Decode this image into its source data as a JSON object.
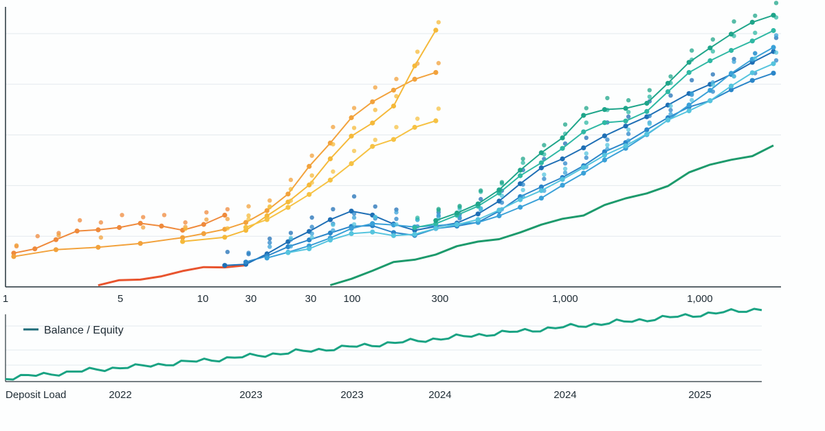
{
  "chart_data": [
    {
      "type": "scatter",
      "title": "",
      "xlabel": "",
      "ylabel": "",
      "x_scale": "log",
      "x_ticks": [
        "1",
        "5",
        "10",
        "30",
        "30",
        "100",
        "300",
        "1,000",
        "1,000"
      ],
      "grid": "horizontal",
      "legend": "none",
      "x_domain": [
        0,
        36
      ],
      "y_domain": [
        0,
        100
      ],
      "series": [
        {
          "color": "#ef8a3c",
          "style": "line+dots",
          "points": [
            [
              0,
              12
            ],
            [
              1,
              14
            ],
            [
              2,
              17
            ],
            [
              3,
              20
            ],
            [
              4,
              21
            ],
            [
              5,
              22
            ],
            [
              6,
              23
            ],
            [
              7,
              22
            ],
            [
              8,
              21
            ],
            [
              9,
              23
            ],
            [
              10,
              26
            ]
          ]
        },
        {
          "color": "#f2a23c",
          "style": "line+dots",
          "points": [
            [
              0,
              11
            ],
            [
              2,
              13
            ],
            [
              4,
              14
            ],
            [
              6,
              16
            ],
            [
              8,
              18
            ],
            [
              9,
              19
            ],
            [
              10,
              21
            ],
            [
              11,
              24
            ],
            [
              12,
              28
            ],
            [
              13,
              34
            ],
            [
              14,
              45
            ],
            [
              15,
              54
            ],
            [
              16,
              63
            ],
            [
              17,
              69
            ],
            [
              18,
              74
            ],
            [
              19,
              78
            ],
            [
              20,
              80
            ]
          ]
        },
        {
          "color": "#f5b93a",
          "style": "line+dots",
          "points": [
            [
              8,
              16
            ],
            [
              10,
              18
            ],
            [
              11,
              21
            ],
            [
              12,
              26
            ],
            [
              13,
              31
            ],
            [
              14,
              38
            ],
            [
              15,
              48
            ],
            [
              16,
              56
            ],
            [
              17,
              61
            ],
            [
              18,
              68
            ],
            [
              19,
              83
            ],
            [
              20,
              96
            ]
          ]
        },
        {
          "color": "#f6c244",
          "style": "line+dots",
          "points": [
            [
              11,
              22
            ],
            [
              12,
              25
            ],
            [
              13,
              29
            ],
            [
              14,
              34
            ],
            [
              15,
              40
            ],
            [
              16,
              46
            ],
            [
              17,
              52
            ],
            [
              18,
              55
            ],
            [
              19,
              60
            ],
            [
              20,
              62
            ]
          ]
        },
        {
          "color": "#e8542e",
          "style": "line",
          "points": [
            [
              4,
              0
            ],
            [
              5,
              1
            ],
            [
              6,
              2
            ],
            [
              7,
              4
            ],
            [
              8,
              5
            ],
            [
              9,
              6
            ],
            [
              10,
              7
            ],
            [
              11,
              8
            ]
          ]
        },
        {
          "color": "#1f6fb5",
          "style": "line+dots",
          "points": [
            [
              10,
              7
            ],
            [
              11,
              8
            ],
            [
              12,
              12
            ],
            [
              13,
              16
            ],
            [
              14,
              20
            ],
            [
              15,
              25
            ],
            [
              16,
              28
            ],
            [
              17,
              26
            ],
            [
              18,
              23
            ],
            [
              19,
              21
            ],
            [
              20,
              22
            ],
            [
              21,
              23
            ],
            [
              22,
              27
            ],
            [
              23,
              32
            ],
            [
              24,
              38
            ],
            [
              25,
              44
            ],
            [
              26,
              48
            ],
            [
              27,
              52
            ],
            [
              28,
              56
            ],
            [
              29,
              60
            ],
            [
              30,
              64
            ],
            [
              31,
              68
            ],
            [
              32,
              72
            ],
            [
              33,
              76
            ],
            [
              34,
              80
            ],
            [
              35,
              84
            ],
            [
              36,
              88
            ]
          ]
        },
        {
          "color": "#2b86c9",
          "style": "line+dots",
          "points": [
            [
              11,
              9
            ],
            [
              12,
              11
            ],
            [
              13,
              14
            ],
            [
              14,
              17
            ],
            [
              15,
              20
            ],
            [
              16,
              22
            ],
            [
              17,
              22
            ],
            [
              18,
              20
            ],
            [
              19,
              19
            ],
            [
              20,
              21
            ],
            [
              21,
              22
            ],
            [
              22,
              24
            ],
            [
              23,
              28
            ],
            [
              24,
              33
            ],
            [
              25,
              37
            ],
            [
              26,
              41
            ],
            [
              27,
              45
            ],
            [
              28,
              50
            ],
            [
              29,
              54
            ],
            [
              30,
              59
            ],
            [
              31,
              63
            ],
            [
              32,
              67
            ],
            [
              33,
              70
            ],
            [
              34,
              74
            ],
            [
              35,
              77
            ],
            [
              36,
              80
            ]
          ]
        },
        {
          "color": "#3aa1d8",
          "style": "line+dots",
          "points": [
            [
              12,
              10
            ],
            [
              13,
              12
            ],
            [
              14,
              15
            ],
            [
              15,
              18
            ],
            [
              16,
              21
            ],
            [
              17,
              23
            ],
            [
              18,
              23
            ],
            [
              19,
              22
            ],
            [
              20,
              22
            ],
            [
              21,
              23
            ],
            [
              22,
              24
            ],
            [
              23,
              26
            ],
            [
              24,
              29
            ],
            [
              25,
              33
            ],
            [
              26,
              38
            ],
            [
              27,
              42
            ],
            [
              28,
              47
            ],
            [
              29,
              52
            ],
            [
              30,
              57
            ],
            [
              31,
              62
            ],
            [
              32,
              68
            ],
            [
              33,
              74
            ],
            [
              34,
              80
            ],
            [
              35,
              85
            ],
            [
              36,
              90
            ]
          ]
        },
        {
          "color": "#55c4de",
          "style": "line+dots",
          "points": [
            [
              13,
              12
            ],
            [
              14,
              14
            ],
            [
              15,
              17
            ],
            [
              16,
              19
            ],
            [
              17,
              20
            ],
            [
              18,
              19
            ],
            [
              19,
              19
            ],
            [
              20,
              21
            ],
            [
              21,
              23
            ],
            [
              22,
              25
            ],
            [
              23,
              28
            ],
            [
              24,
              32
            ],
            [
              25,
              36
            ],
            [
              26,
              40
            ],
            [
              27,
              44
            ],
            [
              28,
              49
            ],
            [
              29,
              53
            ],
            [
              30,
              57
            ],
            [
              31,
              62
            ],
            [
              32,
              66
            ],
            [
              33,
              70
            ],
            [
              34,
              75
            ],
            [
              35,
              80
            ],
            [
              36,
              84
            ]
          ]
        },
        {
          "color": "#2fb8a4",
          "style": "line+dots",
          "points": [
            [
              19,
              22
            ],
            [
              20,
              23
            ],
            [
              21,
              26
            ],
            [
              22,
              30
            ],
            [
              23,
              35
            ],
            [
              24,
              41
            ],
            [
              25,
              46
            ],
            [
              26,
              52
            ],
            [
              27,
              58
            ],
            [
              28,
              61
            ],
            [
              29,
              62
            ],
            [
              30,
              66
            ],
            [
              31,
              73
            ],
            [
              32,
              80
            ],
            [
              33,
              85
            ],
            [
              34,
              89
            ],
            [
              35,
              92
            ],
            [
              36,
              96
            ]
          ]
        },
        {
          "color": "#1fa58a",
          "style": "line+dots",
          "points": [
            [
              20,
              24
            ],
            [
              21,
              27
            ],
            [
              22,
              31
            ],
            [
              23,
              36
            ],
            [
              24,
              43
            ],
            [
              25,
              50
            ],
            [
              26,
              56
            ],
            [
              27,
              64
            ],
            [
              28,
              66
            ],
            [
              29,
              67
            ],
            [
              30,
              69
            ],
            [
              31,
              76
            ],
            [
              32,
              84
            ],
            [
              33,
              90
            ],
            [
              34,
              95
            ],
            [
              35,
              99
            ],
            [
              36,
              102
            ]
          ]
        },
        {
          "color": "#1d9a6c",
          "style": "line",
          "points": [
            [
              15,
              0
            ],
            [
              16,
              3
            ],
            [
              17,
              5
            ],
            [
              18,
              8
            ],
            [
              19,
              10
            ],
            [
              20,
              12
            ],
            [
              21,
              14
            ],
            [
              22,
              16
            ],
            [
              23,
              18
            ],
            [
              24,
              20
            ],
            [
              25,
              22
            ],
            [
              26,
              25
            ],
            [
              27,
              27
            ],
            [
              28,
              30
            ],
            [
              29,
              32
            ],
            [
              30,
              35
            ],
            [
              31,
              38
            ],
            [
              32,
              42
            ],
            [
              33,
              45
            ],
            [
              34,
              48
            ],
            [
              35,
              49
            ],
            [
              36,
              52
            ]
          ]
        }
      ]
    },
    {
      "type": "line",
      "title": "",
      "xlabel": "Deposit Load",
      "ylabel": "",
      "x_ticks": [
        "2022",
        "2023",
        "2023",
        "2024",
        "2024",
        "2025"
      ],
      "grid": "horizontal",
      "legend": "top-left",
      "y_domain": [
        0,
        100
      ],
      "series": [
        {
          "name": "Balance / Equity",
          "color": "#1aa383",
          "values": [
            2,
            3,
            4,
            5,
            6,
            7,
            8,
            9,
            10,
            11,
            12,
            13,
            14,
            15,
            16,
            17,
            18,
            18,
            19,
            20,
            21,
            22,
            23,
            24,
            25,
            26,
            27,
            28,
            29,
            30,
            31,
            32,
            33,
            34,
            35,
            36,
            37,
            38,
            39,
            40,
            41,
            42,
            43,
            44,
            45,
            46,
            47,
            48,
            49,
            50,
            51,
            52,
            53,
            54,
            55,
            56,
            57,
            58,
            59,
            60,
            61,
            62,
            63,
            64,
            65,
            66,
            67,
            68,
            69,
            70,
            71,
            72,
            73,
            74,
            75,
            76,
            77,
            78,
            79,
            80,
            81,
            82,
            83,
            84,
            85,
            86,
            87,
            88,
            89,
            90,
            91,
            92,
            93,
            94,
            95,
            96,
            97,
            98,
            99,
            100
          ]
        }
      ]
    }
  ],
  "legend_label": "Balance / Equity",
  "bottom_axis_label": "Deposit Load"
}
